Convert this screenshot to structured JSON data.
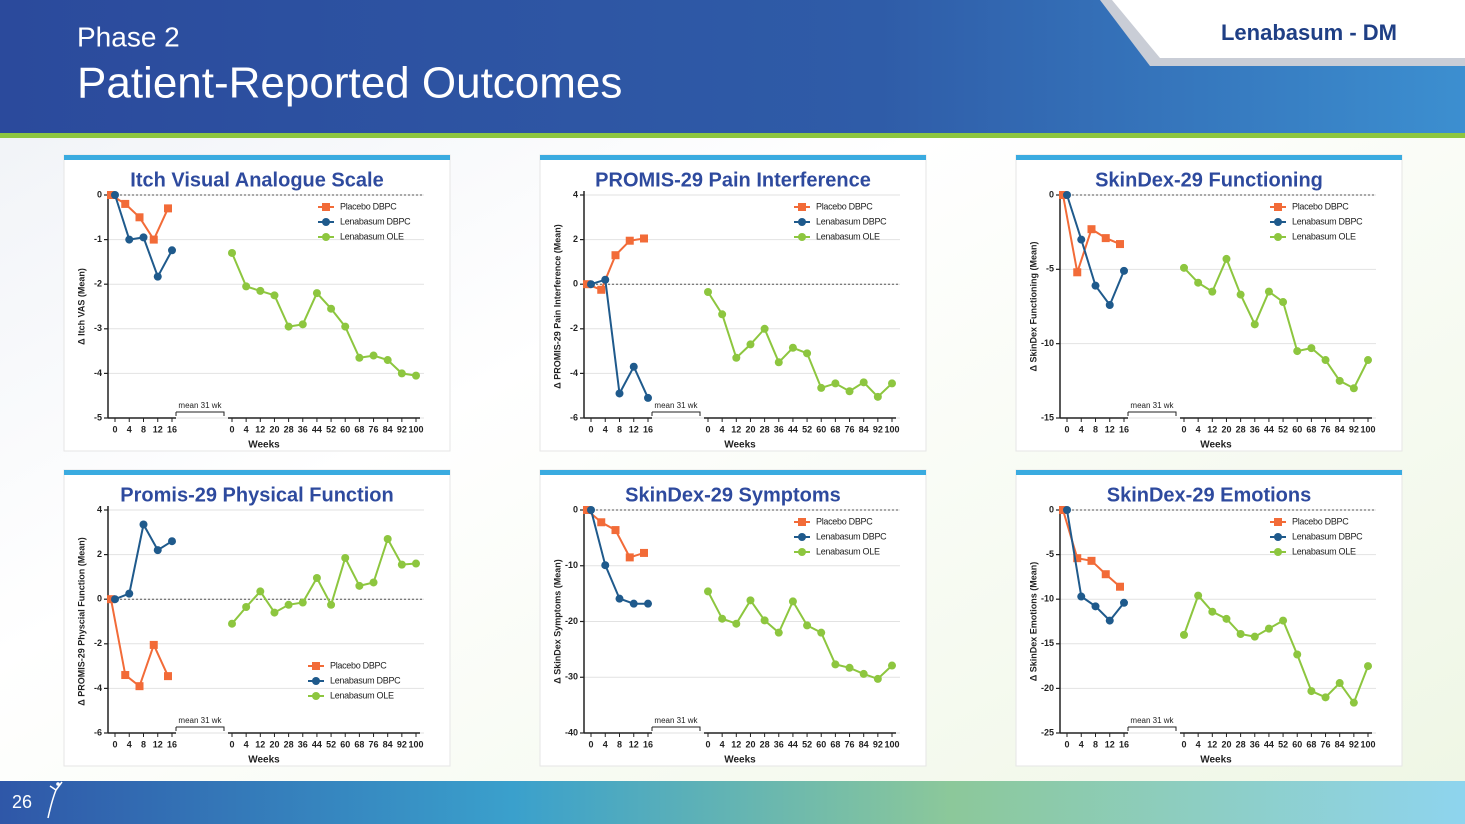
{
  "header": {
    "subtitle": "Phase 2",
    "title": "Patient-Reported Outcomes",
    "brand": "Lenabasum - DM"
  },
  "page_number": 26,
  "chart_data": [
    {
      "type": "line",
      "title": "Itch Visual Analogue Scale",
      "ylabel": "Δ Itch VAS (Mean)",
      "xlabel": "Weeks",
      "annotation": "mean 31 wk",
      "legend": "upper right",
      "grid": true,
      "ylim": [
        -5,
        0
      ],
      "yticks": [
        -5,
        -4,
        -3,
        -2,
        -1,
        0
      ],
      "x_axes": [
        {
          "categories": [
            0,
            4,
            8,
            12,
            16
          ]
        },
        {
          "categories": [
            0,
            4,
            12,
            20,
            28,
            36,
            44,
            52,
            60,
            68,
            76,
            84,
            92,
            100
          ]
        }
      ],
      "series": [
        {
          "name": "Placebo DBPC",
          "color": "#f26b38",
          "marker": "square",
          "xaxis": 0,
          "values": [
            0,
            -0.2,
            -0.5,
            -1.0,
            -0.3
          ]
        },
        {
          "name": "Lenabasum DBPC",
          "color": "#1f5a8c",
          "marker": "circle",
          "xaxis": 0,
          "values": [
            0,
            -1.0,
            -0.95,
            -1.83,
            -1.24
          ]
        },
        {
          "name": "Lenabasum OLE",
          "color": "#8dc63f",
          "marker": "circle",
          "xaxis": 1,
          "values": [
            -1.3,
            -2.05,
            -2.15,
            -2.25,
            -2.95,
            -2.9,
            -2.2,
            -2.55,
            -2.95,
            -3.65,
            -3.6,
            -3.7,
            -4.0,
            -4.05
          ]
        }
      ]
    },
    {
      "type": "line",
      "title": "PROMIS-29 Pain Interference",
      "ylabel": "Δ PROMIS-29 Pain Interference (Mean)",
      "xlabel": "Weeks",
      "annotation": "mean 31 wk",
      "legend": "upper right",
      "grid": true,
      "ylim": [
        -6,
        4
      ],
      "yticks": [
        -6,
        -4,
        -2,
        0,
        2,
        4
      ],
      "x_axes": [
        {
          "categories": [
            0,
            4,
            8,
            12,
            16
          ]
        },
        {
          "categories": [
            0,
            4,
            12,
            20,
            28,
            36,
            44,
            52,
            60,
            68,
            76,
            84,
            92,
            100
          ]
        }
      ],
      "series": [
        {
          "name": "Placebo DBPC",
          "color": "#f26b38",
          "marker": "square",
          "xaxis": 0,
          "values": [
            0,
            -0.25,
            1.3,
            1.95,
            2.05
          ]
        },
        {
          "name": "Lenabasum DBPC",
          "color": "#1f5a8c",
          "marker": "circle",
          "xaxis": 0,
          "values": [
            0,
            0.2,
            -4.9,
            -3.7,
            -5.1
          ]
        },
        {
          "name": "Lenabasum OLE",
          "color": "#8dc63f",
          "marker": "circle",
          "xaxis": 1,
          "values": [
            -0.35,
            -1.35,
            -3.3,
            -2.7,
            -2.0,
            -3.5,
            -2.85,
            -3.1,
            -4.65,
            -4.45,
            -4.8,
            -4.4,
            -5.05,
            -4.45
          ]
        }
      ]
    },
    {
      "type": "line",
      "title": "SkinDex-29 Functioning",
      "ylabel": "Δ SkinDex Functioning (Mean)",
      "xlabel": "Weeks",
      "annotation": "mean 31 wk",
      "legend": "upper right",
      "grid": true,
      "ylim": [
        -15,
        0
      ],
      "yticks": [
        -15,
        -10,
        -5,
        0
      ],
      "x_axes": [
        {
          "categories": [
            0,
            4,
            8,
            12,
            16
          ]
        },
        {
          "categories": [
            0,
            4,
            12,
            20,
            28,
            36,
            44,
            52,
            60,
            68,
            76,
            84,
            92,
            100
          ]
        }
      ],
      "series": [
        {
          "name": "Placebo DBPC",
          "color": "#f26b38",
          "marker": "square",
          "xaxis": 0,
          "values": [
            0,
            -5.2,
            -2.3,
            -2.9,
            -3.3
          ]
        },
        {
          "name": "Lenabasum DBPC",
          "color": "#1f5a8c",
          "marker": "circle",
          "xaxis": 0,
          "values": [
            0,
            -3.0,
            -6.1,
            -7.4,
            -5.1
          ]
        },
        {
          "name": "Lenabasum OLE",
          "color": "#8dc63f",
          "marker": "circle",
          "xaxis": 1,
          "values": [
            -4.9,
            -5.9,
            -6.5,
            -4.3,
            -6.7,
            -8.7,
            -6.5,
            -7.2,
            -10.5,
            -10.3,
            -11.1,
            -12.5,
            -13.0,
            -11.1
          ]
        }
      ]
    },
    {
      "type": "line",
      "title": "Promis-29 Physical Function",
      "ylabel": "Δ PROMIS-29 Physcial Function (Mean)",
      "xlabel": "Weeks",
      "annotation": "mean 31 wk",
      "legend": "lower right",
      "grid": true,
      "ylim": [
        -6,
        4
      ],
      "yticks": [
        -6,
        -4,
        -2,
        0,
        2,
        4
      ],
      "x_axes": [
        {
          "categories": [
            0,
            4,
            8,
            12,
            16
          ]
        },
        {
          "categories": [
            0,
            4,
            12,
            20,
            28,
            36,
            44,
            52,
            60,
            68,
            76,
            84,
            92,
            100
          ]
        }
      ],
      "series": [
        {
          "name": "Placebo DBPC",
          "color": "#f26b38",
          "marker": "square",
          "xaxis": 0,
          "values": [
            0,
            -3.4,
            -3.9,
            -2.05,
            -3.45
          ]
        },
        {
          "name": "Lenabasum DBPC",
          "color": "#1f5a8c",
          "marker": "circle",
          "xaxis": 0,
          "values": [
            0,
            0.25,
            3.35,
            2.2,
            2.6
          ]
        },
        {
          "name": "Lenabasum OLE",
          "color": "#8dc63f",
          "marker": "circle",
          "xaxis": 1,
          "values": [
            -1.1,
            -0.35,
            0.35,
            -0.6,
            -0.25,
            -0.15,
            0.95,
            -0.25,
            1.85,
            0.6,
            0.75,
            2.7,
            1.55,
            1.6
          ]
        }
      ]
    },
    {
      "type": "line",
      "title": "SkinDex-29 Symptoms",
      "ylabel": "Δ SkinDex Symptoms (Mean)",
      "xlabel": "Weeks",
      "annotation": "mean 31 wk",
      "legend": "upper right",
      "grid": true,
      "ylim": [
        -40,
        0
      ],
      "yticks": [
        -40,
        -30,
        -20,
        -10,
        0
      ],
      "x_axes": [
        {
          "categories": [
            0,
            4,
            8,
            12,
            16
          ]
        },
        {
          "categories": [
            0,
            4,
            12,
            20,
            28,
            36,
            44,
            52,
            60,
            68,
            76,
            84,
            92,
            100
          ]
        }
      ],
      "series": [
        {
          "name": "Placebo DBPC",
          "color": "#f26b38",
          "marker": "square",
          "xaxis": 0,
          "values": [
            0,
            -2.2,
            -3.6,
            -8.5,
            -7.7
          ]
        },
        {
          "name": "Lenabasum DBPC",
          "color": "#1f5a8c",
          "marker": "circle",
          "xaxis": 0,
          "values": [
            0,
            -9.9,
            -15.9,
            -16.8,
            -16.8
          ]
        },
        {
          "name": "Lenabasum OLE",
          "color": "#8dc63f",
          "marker": "circle",
          "xaxis": 1,
          "values": [
            -14.6,
            -19.5,
            -20.4,
            -16.2,
            -19.8,
            -22.0,
            -16.4,
            -20.7,
            -22.0,
            -27.7,
            -28.3,
            -29.4,
            -30.3,
            -27.9
          ]
        }
      ]
    },
    {
      "type": "line",
      "title": "SkinDex-29 Emotions",
      "ylabel": "Δ SkinDex Emotions (Mean)",
      "xlabel": "Weeks",
      "annotation": "mean 31 wk",
      "legend": "upper right",
      "grid": true,
      "ylim": [
        -25,
        0
      ],
      "yticks": [
        -25,
        -20,
        -15,
        -10,
        -5,
        0
      ],
      "x_axes": [
        {
          "categories": [
            0,
            4,
            8,
            12,
            16
          ]
        },
        {
          "categories": [
            0,
            4,
            12,
            20,
            28,
            36,
            44,
            52,
            60,
            68,
            76,
            84,
            92,
            100
          ]
        }
      ],
      "series": [
        {
          "name": "Placebo DBPC",
          "color": "#f26b38",
          "marker": "square",
          "xaxis": 0,
          "values": [
            0,
            -5.4,
            -5.7,
            -7.2,
            -8.6
          ]
        },
        {
          "name": "Lenabasum DBPC",
          "color": "#1f5a8c",
          "marker": "circle",
          "xaxis": 0,
          "values": [
            0,
            -9.7,
            -10.8,
            -12.4,
            -10.4
          ]
        },
        {
          "name": "Lenabasum OLE",
          "color": "#8dc63f",
          "marker": "circle",
          "xaxis": 1,
          "values": [
            -14.0,
            -9.6,
            -11.4,
            -12.2,
            -13.9,
            -14.2,
            -13.3,
            -12.4,
            -16.2,
            -20.3,
            -21.0,
            -19.4,
            -21.6,
            -17.5
          ]
        }
      ]
    }
  ]
}
